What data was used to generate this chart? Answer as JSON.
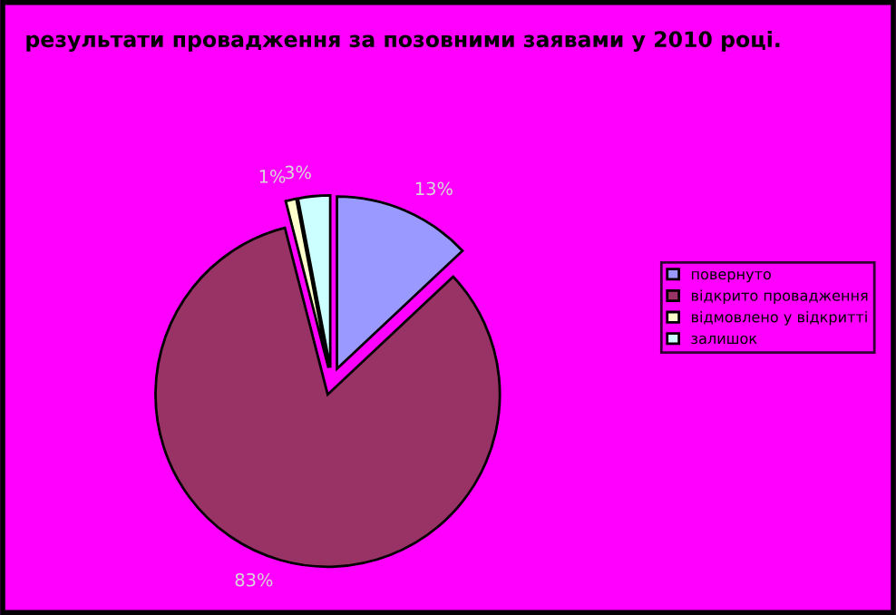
{
  "chart_data": {
    "type": "pie",
    "title": "результати провадження за позовними заявами у 2010 році.",
    "categories": [
      "повернуто",
      "відкрито провадження",
      "відмовлено у відкритті",
      "залишок"
    ],
    "values": [
      13,
      83,
      1,
      3
    ],
    "colors": [
      "#9999ff",
      "#993366",
      "#ffffcc",
      "#ccffff"
    ],
    "value_labels": [
      "13%",
      "83%",
      "1%",
      "3%"
    ],
    "legend": "right"
  }
}
